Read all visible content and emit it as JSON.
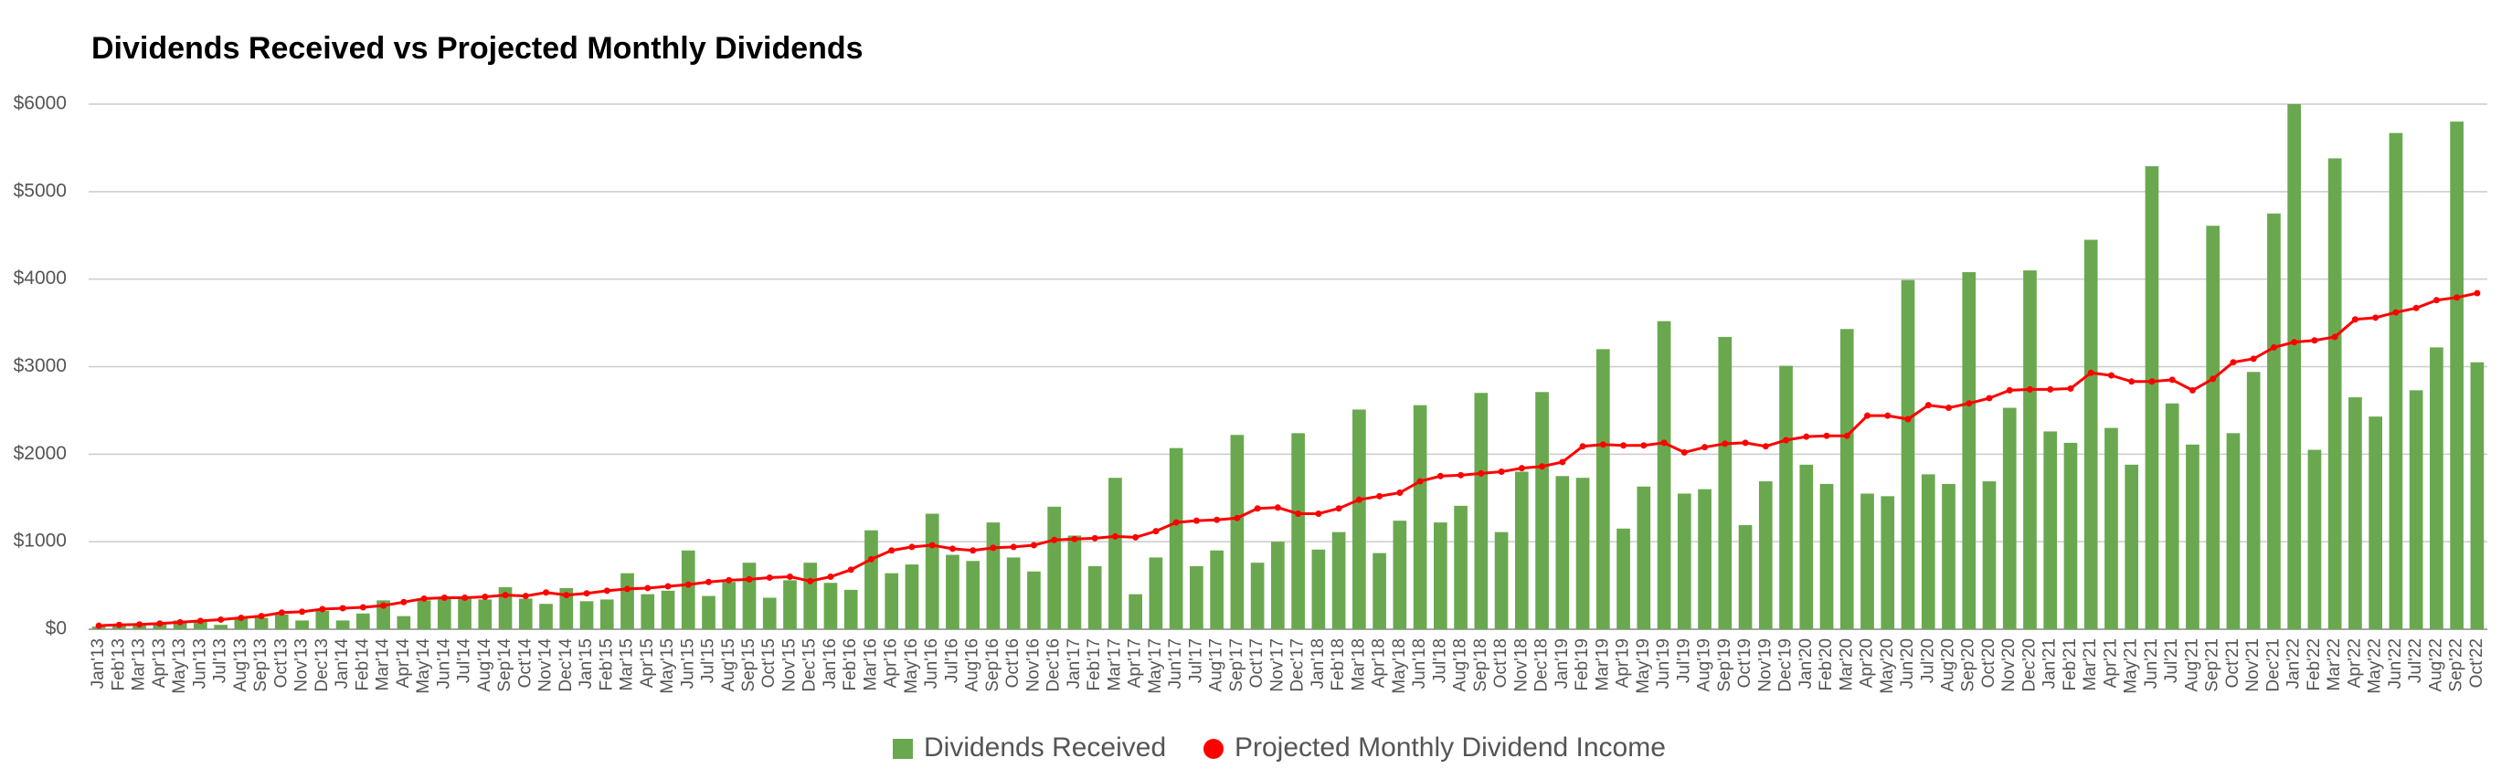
{
  "chart_data": {
    "type": "bar_line",
    "title": "Dividends Received vs Projected Monthly Dividends",
    "categories": [
      "Jan'13",
      "Feb'13",
      "Mar'13",
      "Apr'13",
      "May'13",
      "Jun'13",
      "Jul'13",
      "Aug'13",
      "Sep'13",
      "Oct'13",
      "Nov'13",
      "Dec'13",
      "Jan'14",
      "Feb'14",
      "Mar'14",
      "Apr'14",
      "May'14",
      "Jun'14",
      "Jul'14",
      "Aug'14",
      "Sep'14",
      "Oct'14",
      "Nov'14",
      "Dec'14",
      "Jan'15",
      "Feb'15",
      "Mar'15",
      "Apr'15",
      "May'15",
      "Jun'15",
      "Jul'15",
      "Aug'15",
      "Sep'15",
      "Oct'15",
      "Nov'15",
      "Dec'15",
      "Jan'16",
      "Feb'16",
      "Mar'16",
      "Apr'16",
      "May'16",
      "Jun'16",
      "Jul'16",
      "Aug'16",
      "Sep'16",
      "Oct'16",
      "Nov'16",
      "Dec'16",
      "Jan'17",
      "Feb'17",
      "Mar'17",
      "Apr'17",
      "May'17",
      "Jun'17",
      "Jul'17",
      "Aug'17",
      "Sep'17",
      "Oct'17",
      "Nov'17",
      "Dec'17",
      "Jan'18",
      "Feb'18",
      "Mar'18",
      "Apr'18",
      "May'18",
      "Jun'18",
      "Jul'18",
      "Aug'18",
      "Sep'18",
      "Oct'18",
      "Nov'18",
      "Dec'18",
      "Jan'19",
      "Feb'19",
      "Mar'19",
      "Apr'19",
      "May'19",
      "Jun'19",
      "Jul'19",
      "Aug'19",
      "Sep'19",
      "Oct'19",
      "Nov'19",
      "Dec'19",
      "Jan'20",
      "Feb'20",
      "Mar'20",
      "Apr'20",
      "May'20",
      "Jun'20",
      "Jul'20",
      "Aug'20",
      "Sep'20",
      "Oct'20",
      "Nov'20",
      "Dec'20",
      "Jan'21",
      "Feb'21",
      "Mar'21",
      "Apr'21",
      "May'21",
      "Jun'21",
      "Jul'21",
      "Aug'21",
      "Sep'21",
      "Oct'21",
      "Nov'21",
      "Dec'21",
      "Jan'22",
      "Feb'22",
      "Mar'22",
      "Apr'22",
      "May'22",
      "Jun'22",
      "Jul'22",
      "Aug'22",
      "Sep'22",
      "Oct'22"
    ],
    "series": [
      {
        "name": "Dividends Received",
        "type": "bar",
        "color": "#6aa84f",
        "values": [
          30,
          40,
          50,
          60,
          100,
          90,
          50,
          120,
          130,
          170,
          100,
          210,
          100,
          180,
          330,
          150,
          330,
          360,
          370,
          340,
          480,
          350,
          290,
          470,
          320,
          340,
          640,
          400,
          440,
          900,
          380,
          540,
          760,
          360,
          560,
          760,
          530,
          450,
          1130,
          640,
          740,
          1320,
          850,
          780,
          1220,
          820,
          660,
          1400,
          1070,
          720,
          1730,
          400,
          820,
          2070,
          720,
          900,
          2220,
          760,
          1000,
          2240,
          910,
          1110,
          2510,
          870,
          1240,
          2560,
          1220,
          1410,
          2700,
          1110,
          1800,
          2710,
          1750,
          1730,
          3200,
          1150,
          1630,
          3520,
          1550,
          1600,
          3340,
          1190,
          1690,
          3010,
          1880,
          1660,
          3430,
          1550,
          1520,
          3990,
          1770,
          1660,
          4080,
          1690,
          2530,
          4100,
          2260,
          2130,
          4450,
          2300,
          1880,
          5290,
          2580,
          2110,
          4610,
          2240,
          2940,
          4750,
          6000,
          2050,
          5380,
          2650,
          2430,
          5670,
          2730,
          3220,
          5800,
          3050
        ]
      },
      {
        "name": "Projected Monthly Dividend Income",
        "type": "line",
        "color": "#ff0000",
        "values": [
          40,
          50,
          55,
          65,
          80,
          95,
          110,
          130,
          150,
          190,
          200,
          230,
          240,
          250,
          270,
          310,
          350,
          360,
          360,
          370,
          390,
          380,
          420,
          390,
          410,
          440,
          460,
          470,
          490,
          510,
          540,
          560,
          570,
          590,
          600,
          550,
          600,
          680,
          800,
          900,
          940,
          960,
          920,
          900,
          930,
          940,
          960,
          1020,
          1030,
          1040,
          1060,
          1050,
          1120,
          1220,
          1240,
          1250,
          1270,
          1380,
          1390,
          1320,
          1320,
          1380,
          1480,
          1520,
          1560,
          1690,
          1750,
          1760,
          1780,
          1800,
          1840,
          1860,
          1910,
          2090,
          2110,
          2100,
          2100,
          2130,
          2020,
          2080,
          2120,
          2130,
          2090,
          2160,
          2200,
          2210,
          2210,
          2440,
          2440,
          2400,
          2560,
          2530,
          2580,
          2640,
          2730,
          2740,
          2740,
          2750,
          2930,
          2900,
          2830,
          2830,
          2850,
          2730,
          2860,
          3050,
          3090,
          3220,
          3280,
          3300,
          3340,
          3540,
          3560,
          3620,
          3670,
          3760,
          3790,
          3840
        ]
      }
    ],
    "ylim": [
      0,
      6000
    ],
    "yticks": [
      {
        "value": 0,
        "label": "$0"
      },
      {
        "value": 1000,
        "label": "$1000"
      },
      {
        "value": 2000,
        "label": "$2000"
      },
      {
        "value": 3000,
        "label": "$3000"
      },
      {
        "value": 4000,
        "label": "$4000"
      },
      {
        "value": 5000,
        "label": "$5000"
      },
      {
        "value": 6000,
        "label": "$6000"
      }
    ],
    "grid": true,
    "legend": "bottom"
  }
}
